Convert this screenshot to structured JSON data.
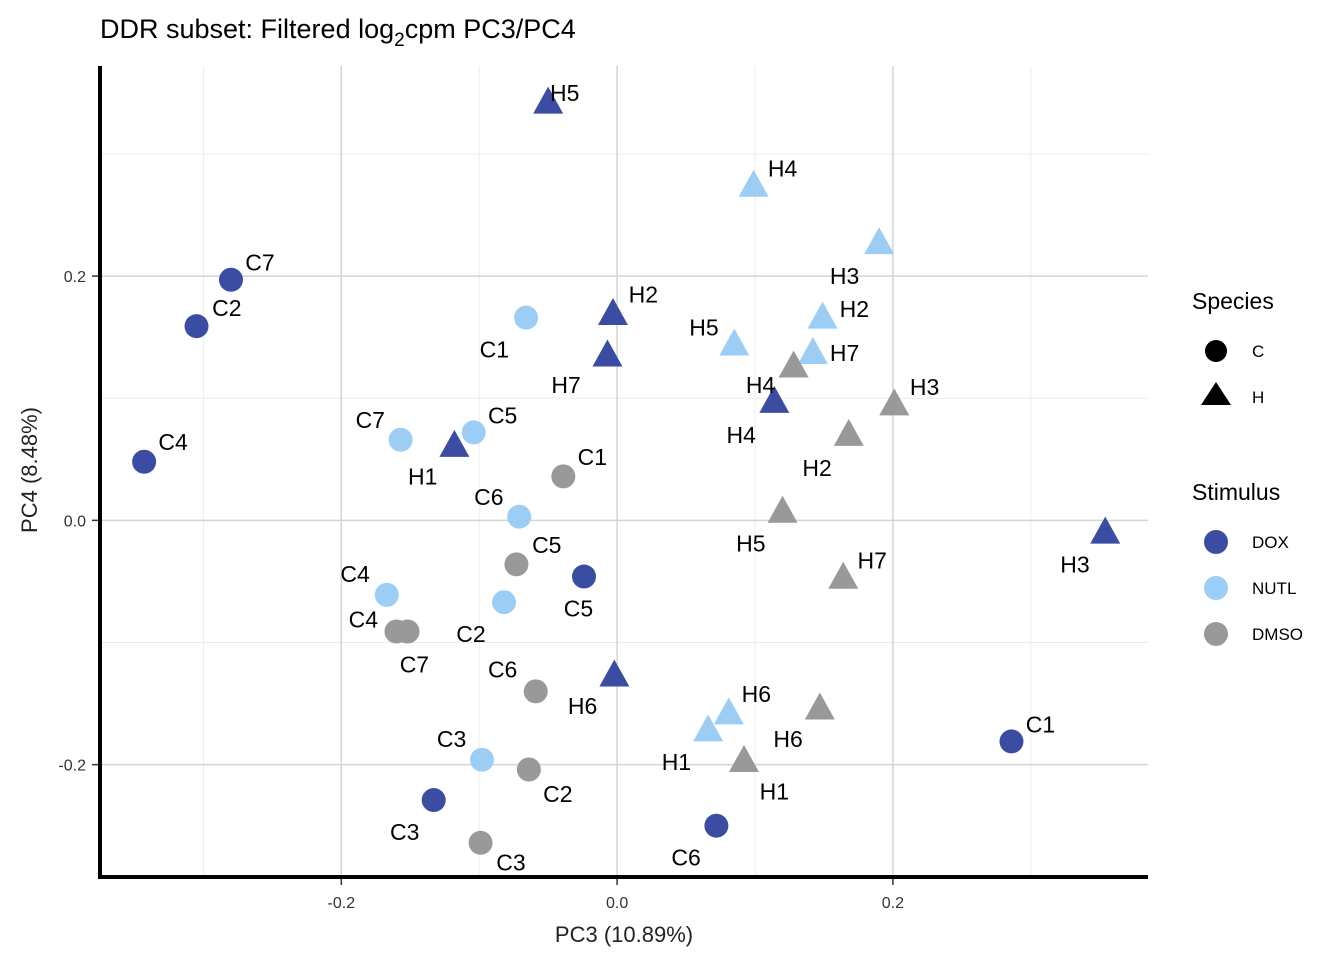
{
  "chart_data": {
    "type": "scatter",
    "title_parts": {
      "prefix": "DDR subset: Filtered log",
      "subscript": "2",
      "suffix": "cpm PC3/PC4"
    },
    "xlabel": "PC3 (10.89%)",
    "ylabel": "PC4 (8.48%)",
    "xlim": [
      -0.375,
      0.385
    ],
    "ylim": [
      -0.292,
      0.372
    ],
    "xticks": [
      -0.2,
      0.0,
      0.2
    ],
    "xtick_labels": [
      "-0.2",
      "0.0",
      "0.2"
    ],
    "yticks": [
      -0.2,
      0.0,
      0.2
    ],
    "ytick_labels": [
      "-0.2",
      "0.0",
      "0.2"
    ],
    "xminor": [
      -0.3,
      -0.1,
      0.1,
      0.3
    ],
    "yminor": [
      -0.1,
      0.1,
      0.3
    ],
    "legend": {
      "species_title": "Species",
      "species": [
        {
          "label": "C",
          "shape": "circle"
        },
        {
          "label": "H",
          "shape": "triangle"
        }
      ],
      "stimulus_title": "Stimulus",
      "stimulus": [
        {
          "label": "DOX",
          "color": "#3b4da2"
        },
        {
          "label": "NUTL",
          "color": "#9ccef5"
        },
        {
          "label": "DMSO",
          "color": "#999999"
        }
      ],
      "position": "right"
    },
    "points": [
      {
        "label": "H5",
        "species": "H",
        "stimulus": "DOX",
        "x": -0.05,
        "y": 0.342,
        "lx": 0.012,
        "ly": 0.008
      },
      {
        "label": "C7",
        "species": "C",
        "stimulus": "DOX",
        "x": -0.28,
        "y": 0.197,
        "lx": 0.021,
        "ly": 0.014
      },
      {
        "label": "C2",
        "species": "C",
        "stimulus": "DOX",
        "x": -0.305,
        "y": 0.159,
        "lx": 0.022,
        "ly": 0.015
      },
      {
        "label": "C4",
        "species": "C",
        "stimulus": "DOX",
        "x": -0.343,
        "y": 0.048,
        "lx": 0.021,
        "ly": 0.016
      },
      {
        "label": "H2",
        "species": "H",
        "stimulus": "DOX",
        "x": -0.003,
        "y": 0.169,
        "lx": 0.022,
        "ly": 0.016
      },
      {
        "label": "H7",
        "species": "H",
        "stimulus": "DOX",
        "x": -0.007,
        "y": 0.135,
        "lx": -0.03,
        "ly": -0.024
      },
      {
        "label": "H1",
        "species": "H",
        "stimulus": "DOX",
        "x": -0.118,
        "y": 0.061,
        "lx": -0.023,
        "ly": -0.025
      },
      {
        "label": "H4",
        "species": "H",
        "stimulus": "DOX",
        "x": 0.114,
        "y": 0.097,
        "lx": -0.024,
        "ly": -0.027
      },
      {
        "label": "H3",
        "species": "H",
        "stimulus": "DOX",
        "x": 0.354,
        "y": -0.01,
        "lx": -0.022,
        "ly": -0.026
      },
      {
        "label": "C5",
        "species": "C",
        "stimulus": "DOX",
        "x": -0.024,
        "y": -0.046,
        "lx": -0.004,
        "ly": -0.026
      },
      {
        "label": "H6",
        "species": "H",
        "stimulus": "DOX",
        "x": -0.002,
        "y": -0.127,
        "lx": -0.023,
        "ly": -0.025
      },
      {
        "label": "C1",
        "species": "C",
        "stimulus": "DOX",
        "x": 0.286,
        "y": -0.181,
        "lx": 0.021,
        "ly": 0.014
      },
      {
        "label": "C3",
        "species": "C",
        "stimulus": "DOX",
        "x": -0.133,
        "y": -0.229,
        "lx": -0.021,
        "ly": -0.026
      },
      {
        "label": "C6",
        "species": "C",
        "stimulus": "DOX",
        "x": 0.072,
        "y": -0.25,
        "lx": -0.022,
        "ly": -0.026
      },
      {
        "label": "H4",
        "species": "H",
        "stimulus": "NUTL",
        "x": 0.099,
        "y": 0.274,
        "lx": 0.021,
        "ly": 0.014
      },
      {
        "label": "H3",
        "species": "H",
        "stimulus": "NUTL",
        "x": 0.19,
        "y": 0.227,
        "lx": -0.025,
        "ly": -0.027
      },
      {
        "label": "C1",
        "species": "C",
        "stimulus": "NUTL",
        "x": -0.066,
        "y": 0.166,
        "lx": -0.023,
        "ly": -0.026
      },
      {
        "label": "H2",
        "species": "H",
        "stimulus": "NUTL",
        "x": 0.149,
        "y": 0.166,
        "lx": 0.023,
        "ly": 0.007
      },
      {
        "label": "H5",
        "species": "H",
        "stimulus": "NUTL",
        "x": 0.085,
        "y": 0.144,
        "lx": -0.022,
        "ly": 0.014
      },
      {
        "label": "H7",
        "species": "H",
        "stimulus": "NUTL",
        "x": 0.142,
        "y": 0.137,
        "lx": 0.023,
        "ly": 0.0
      },
      {
        "label": "C7",
        "species": "C",
        "stimulus": "NUTL",
        "x": -0.157,
        "y": 0.066,
        "lx": -0.022,
        "ly": 0.016
      },
      {
        "label": "C5",
        "species": "C",
        "stimulus": "NUTL",
        "x": -0.104,
        "y": 0.072,
        "lx": 0.021,
        "ly": 0.014
      },
      {
        "label": "C6",
        "species": "C",
        "stimulus": "NUTL",
        "x": -0.071,
        "y": 0.003,
        "lx": -0.022,
        "ly": 0.016
      },
      {
        "label": "C4",
        "species": "C",
        "stimulus": "NUTL",
        "x": -0.167,
        "y": -0.061,
        "lx": -0.023,
        "ly": 0.017
      },
      {
        "label": "C2",
        "species": "C",
        "stimulus": "NUTL",
        "x": -0.082,
        "y": -0.067,
        "lx": -0.024,
        "ly": -0.026
      },
      {
        "label": "H6",
        "species": "H",
        "stimulus": "NUTL",
        "x": 0.081,
        "y": -0.158,
        "lx": 0.02,
        "ly": 0.016
      },
      {
        "label": "H1",
        "species": "H",
        "stimulus": "NUTL",
        "x": 0.066,
        "y": -0.172,
        "lx": -0.023,
        "ly": -0.026
      },
      {
        "label": "C3",
        "species": "C",
        "stimulus": "NUTL",
        "x": -0.098,
        "y": -0.196,
        "lx": -0.022,
        "ly": 0.017
      },
      {
        "label": "H4",
        "species": "H",
        "stimulus": "DMSO",
        "x": 0.128,
        "y": 0.126,
        "lx": -0.024,
        "ly": -0.015
      },
      {
        "label": "H3",
        "species": "H",
        "stimulus": "DMSO",
        "x": 0.201,
        "y": 0.095,
        "lx": 0.022,
        "ly": 0.014
      },
      {
        "label": "H2",
        "species": "H",
        "stimulus": "DMSO",
        "x": 0.168,
        "y": 0.07,
        "lx": -0.023,
        "ly": -0.027
      },
      {
        "label": "C1",
        "species": "C",
        "stimulus": "DMSO",
        "x": -0.039,
        "y": 0.036,
        "lx": 0.021,
        "ly": 0.016
      },
      {
        "label": "H5",
        "species": "H",
        "stimulus": "DMSO",
        "x": 0.12,
        "y": 0.007,
        "lx": -0.023,
        "ly": -0.026
      },
      {
        "label": "H7",
        "species": "H",
        "stimulus": "DMSO",
        "x": 0.164,
        "y": -0.047,
        "lx": 0.021,
        "ly": 0.014
      },
      {
        "label": "C5",
        "species": "C",
        "stimulus": "DMSO",
        "x": -0.073,
        "y": -0.036,
        "lx": 0.022,
        "ly": 0.016
      },
      {
        "label": "C4",
        "species": "C",
        "stimulus": "DMSO",
        "x": -0.16,
        "y": -0.091,
        "lx": -0.024,
        "ly": 0.01
      },
      {
        "label": "C7",
        "species": "C",
        "stimulus": "DMSO",
        "x": -0.152,
        "y": -0.091,
        "lx": 0.005,
        "ly": -0.027
      },
      {
        "label": "C6",
        "species": "C",
        "stimulus": "DMSO",
        "x": -0.059,
        "y": -0.14,
        "lx": -0.024,
        "ly": 0.018
      },
      {
        "label": "H6",
        "species": "H",
        "stimulus": "DMSO",
        "x": 0.147,
        "y": -0.154,
        "lx": -0.023,
        "ly": -0.025
      },
      {
        "label": "H1",
        "species": "H",
        "stimulus": "DMSO",
        "x": 0.092,
        "y": -0.197,
        "lx": 0.022,
        "ly": -0.025
      },
      {
        "label": "C2",
        "species": "C",
        "stimulus": "DMSO",
        "x": -0.064,
        "y": -0.204,
        "lx": 0.021,
        "ly": -0.02
      },
      {
        "label": "C3",
        "species": "C",
        "stimulus": "DMSO",
        "x": -0.099,
        "y": -0.264,
        "lx": 0.022,
        "ly": -0.016
      }
    ]
  }
}
